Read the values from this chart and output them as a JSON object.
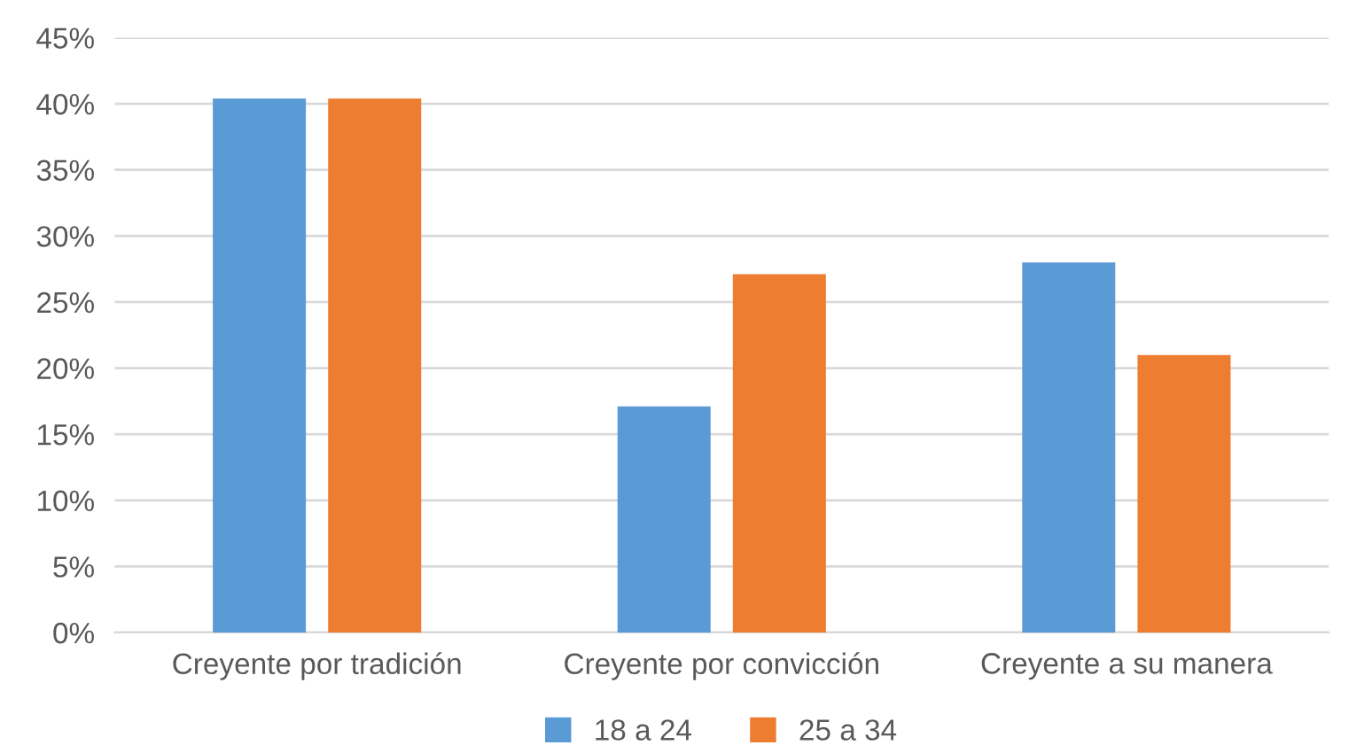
{
  "chart_data": {
    "type": "bar",
    "categories": [
      "Creyente por tradición",
      "Creyente por convicción",
      "Creyente a su manera"
    ],
    "series": [
      {
        "name": "18 a 24",
        "color": "#5b9bd5",
        "values": [
          40.4,
          17.1,
          28.0
        ]
      },
      {
        "name": "25 a 34",
        "color": "#ed7d31",
        "values": [
          40.4,
          27.1,
          21.0
        ]
      }
    ],
    "ylim": [
      0,
      45
    ],
    "yticks": [
      {
        "value": 0,
        "label": "0%"
      },
      {
        "value": 5,
        "label": "5%"
      },
      {
        "value": 10,
        "label": "10%"
      },
      {
        "value": 15,
        "label": "15%"
      },
      {
        "value": 20,
        "label": "20%"
      },
      {
        "value": 25,
        "label": "25%"
      },
      {
        "value": 30,
        "label": "30%"
      },
      {
        "value": 35,
        "label": "35%"
      },
      {
        "value": 40,
        "label": "40%"
      },
      {
        "value": 45,
        "label": "45%"
      }
    ],
    "grid": "y",
    "legend": "bottom"
  }
}
